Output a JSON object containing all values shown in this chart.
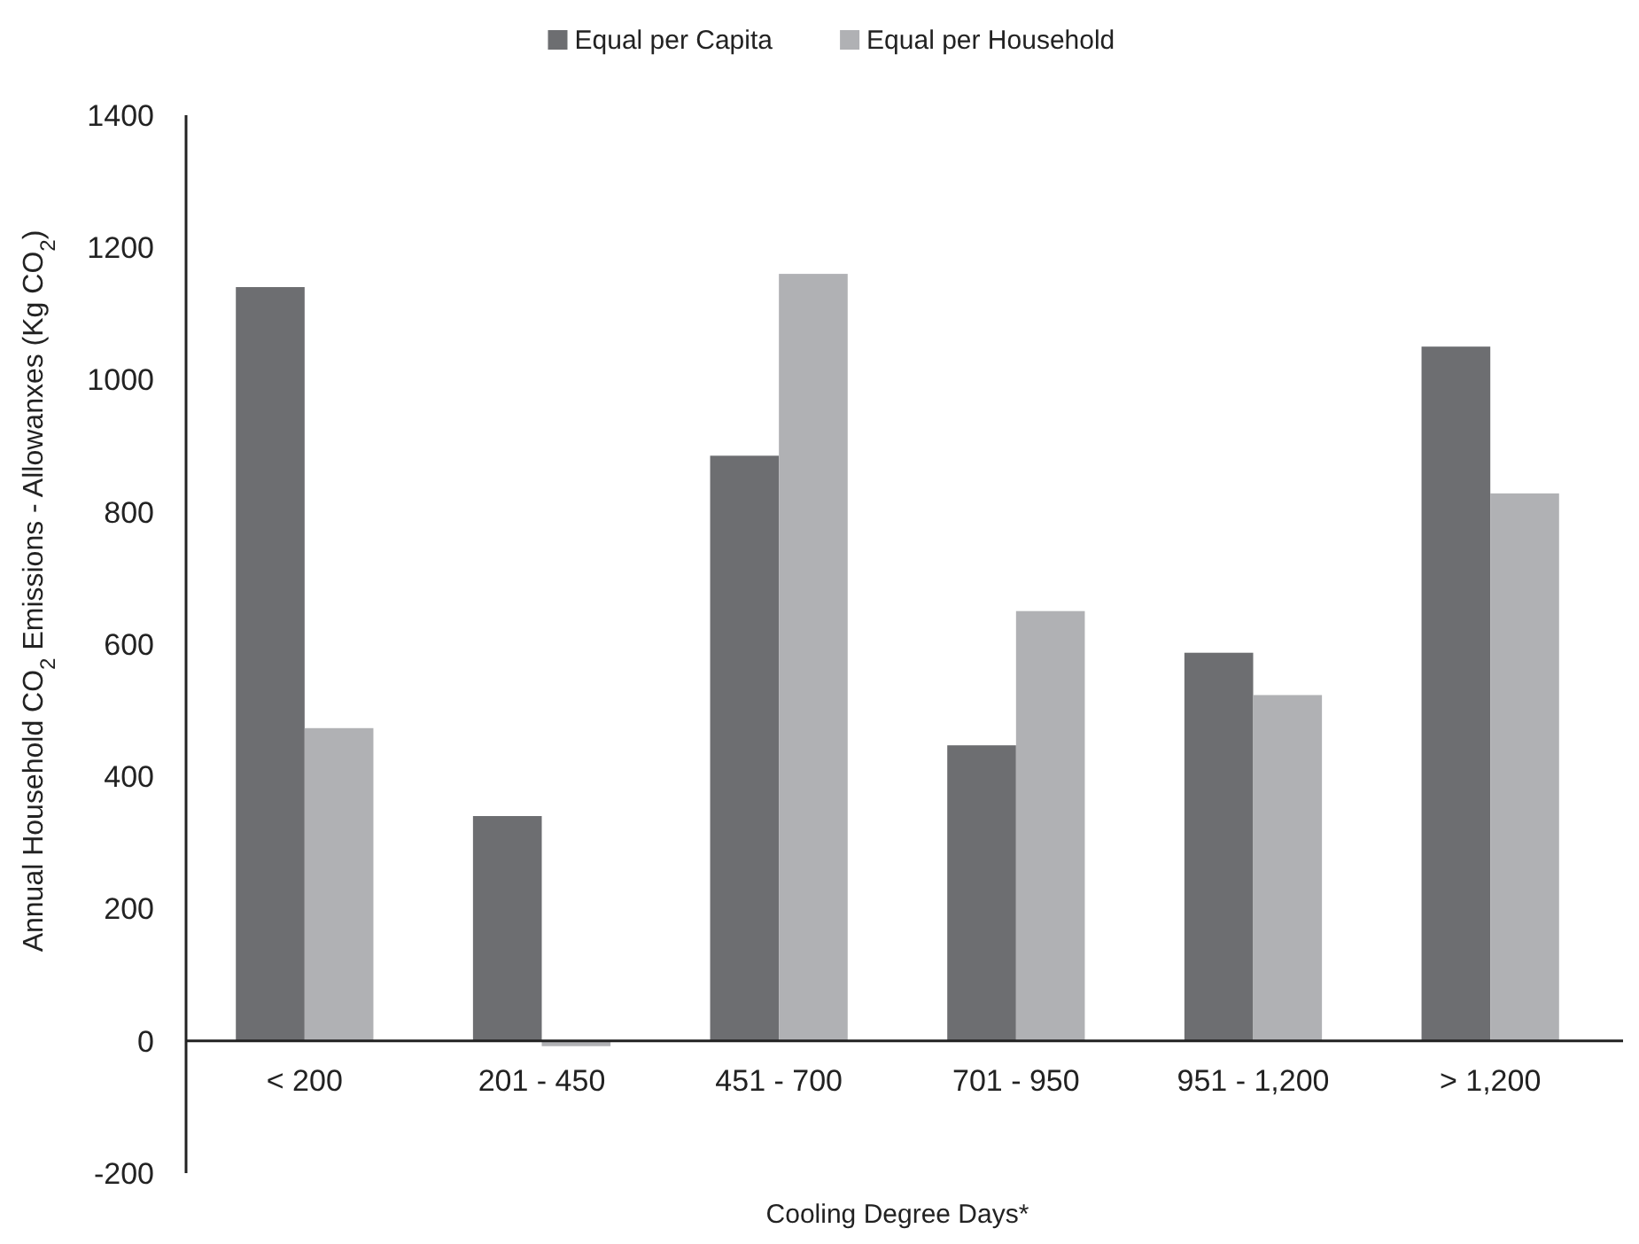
{
  "chart_data": {
    "type": "bar",
    "xlabel": "Cooling Degree Days*",
    "ylabel": "Annual Household CO$_{2}$ Emissions - Allowanxes (Kg CO$_{2}$)",
    "categories": [
      "< 200",
      "201 - 450",
      "451 - 700",
      "701 - 950",
      "951 - 1,200",
      "> 1,200"
    ],
    "series": [
      {
        "name": "Equal per Capita",
        "color": "#6d6e71",
        "values": [
          1140,
          340,
          885,
          447,
          587,
          1050
        ]
      },
      {
        "name": "Equal per Household",
        "color": "#b0b1b4",
        "values": [
          473,
          -8,
          1160,
          650,
          523,
          828
        ]
      }
    ],
    "ylim": [
      -200,
      1400
    ],
    "yticks": [
      -200,
      0,
      200,
      400,
      600,
      800,
      1000,
      1200,
      1400
    ],
    "grid": false,
    "legend": "top"
  }
}
